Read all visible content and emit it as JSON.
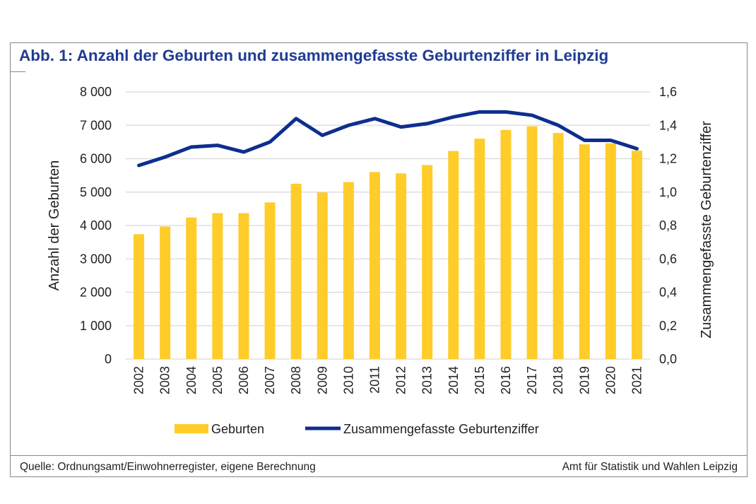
{
  "title": "Abb. 1: Anzahl der Geburten und zusammengefasste Geburtenziffer in Leipzig",
  "footer": {
    "source": "Quelle: Ordnungsamt/Einwohnerregister, eigene Berechnung",
    "publisher": "Amt für Statistik und Wahlen Leipzig"
  },
  "chart_data": {
    "type": "bar+line",
    "title": "Abb. 1: Anzahl der Geburten und zusammengefasste Geburtenziffer in Leipzig",
    "categories": [
      "2002",
      "2003",
      "2004",
      "2005",
      "2006",
      "2007",
      "2008",
      "2009",
      "2010",
      "2011",
      "2012",
      "2013",
      "2014",
      "2015",
      "2016",
      "2017",
      "2018",
      "2019",
      "2020",
      "2021"
    ],
    "ylabel": "Anzahl der Geburten",
    "y2label": "Zusammengefasste Geburtenziffer",
    "ylim": [
      0,
      8000
    ],
    "y2lim": [
      0,
      1.6
    ],
    "yticks": [
      "0",
      "1 000",
      "2 000",
      "3 000",
      "4 000",
      "5 000",
      "6 000",
      "7 000",
      "8 000"
    ],
    "y2ticks": [
      "0,0",
      "0,2",
      "0,4",
      "0,6",
      "0,8",
      "1,0",
      "1,2",
      "1,4",
      "1,6"
    ],
    "grid": true,
    "legend_position": "bottom",
    "series": [
      {
        "name": "Geburten",
        "type": "bar",
        "axis": "left",
        "color": "#FFCC29",
        "values": [
          3740,
          3970,
          4240,
          4370,
          4370,
          4690,
          5250,
          4990,
          5300,
          5600,
          5560,
          5810,
          6230,
          6600,
          6860,
          6970,
          6770,
          6430,
          6460,
          6240
        ]
      },
      {
        "name": "Zusammengefasste Geburtenziffer",
        "type": "line",
        "axis": "right",
        "color": "#0E2E8F",
        "values": [
          1.16,
          1.21,
          1.27,
          1.28,
          1.24,
          1.3,
          1.44,
          1.34,
          1.4,
          1.44,
          1.39,
          1.41,
          1.45,
          1.48,
          1.48,
          1.46,
          1.4,
          1.31,
          1.31,
          1.26
        ]
      }
    ]
  }
}
